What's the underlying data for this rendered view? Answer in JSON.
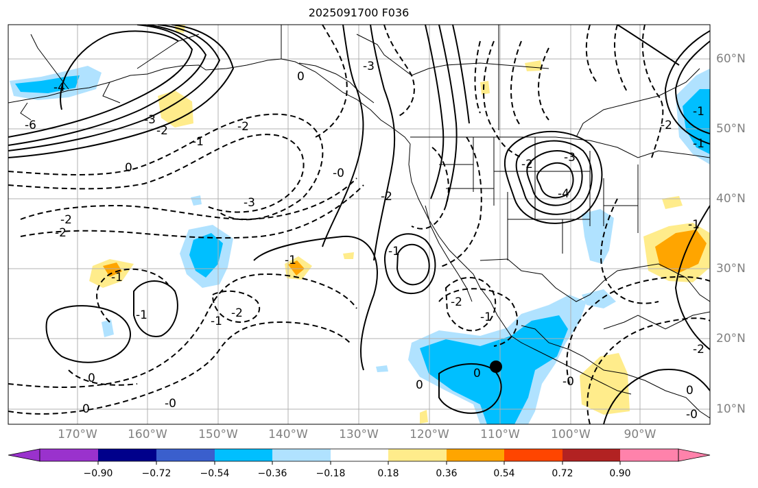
{
  "title": "2025091700 F036",
  "lon_labels": [
    "170°W",
    "160°W",
    "150°W",
    "140°W",
    "130°W",
    "120°W",
    "110°W",
    "100°W",
    "90°W"
  ],
  "lat_labels": [
    "60°N",
    "50°N",
    "40°N",
    "30°N",
    "20°N",
    "10°N"
  ],
  "colorbar": {
    "ticks": [
      "−0.90",
      "−0.72",
      "−0.54",
      "−0.36",
      "−0.18",
      "0.18",
      "0.36",
      "0.54",
      "0.72",
      "0.90"
    ],
    "colors": [
      "#9a32cd",
      "#00008b",
      "#3a5fcd",
      "#00bfff",
      "#b0e2ff",
      "#ffffff",
      "#ffec8b",
      "#ffa500",
      "#ff4500",
      "#b22222",
      "#ff82ab"
    ]
  },
  "contour_labels": [
    "-4",
    "-6",
    "-3",
    "-2",
    "-1",
    "0",
    "-2",
    "-2",
    "-3",
    "-2",
    "-1",
    "-1",
    "0",
    "-2",
    "-1",
    "0",
    "-0",
    "0",
    "-0",
    "-3",
    "-2",
    "-1",
    "-1",
    "0",
    "-4",
    "-3",
    "-2",
    "-2",
    "-1",
    "0",
    "-2",
    "-1",
    "-1",
    "0",
    "-2",
    "-0",
    "-0",
    "-1"
  ],
  "storm_marker": "tropical-cyclone-position"
}
